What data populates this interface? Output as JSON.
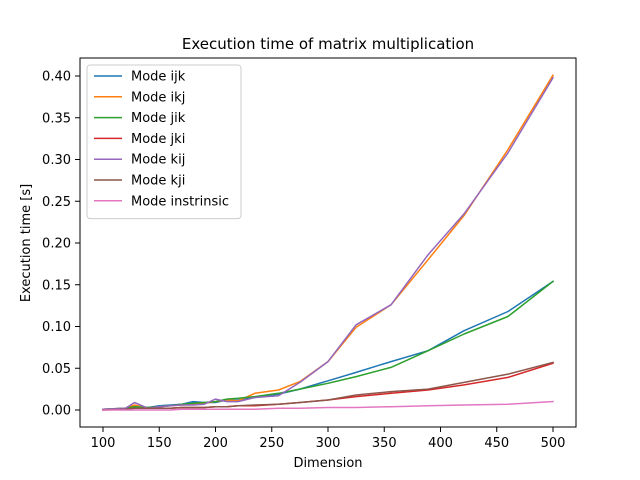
{
  "chart_data": {
    "type": "line",
    "title": "Execution time of matrix multiplication",
    "xlabel": "Dimension",
    "ylabel": "Execution time [s]",
    "xlim": [
      100,
      500
    ],
    "ylim": [
      0,
      0.4
    ],
    "x_ticks": [
      100,
      150,
      200,
      250,
      300,
      350,
      400,
      450,
      500
    ],
    "x_tick_labels": [
      "100",
      "150",
      "200",
      "250",
      "300",
      "350",
      "400",
      "450",
      "500"
    ],
    "y_ticks": [
      0.0,
      0.05,
      0.1,
      0.15,
      0.2,
      0.25,
      0.3,
      0.35,
      0.4
    ],
    "y_tick_labels": [
      "0.00",
      "0.05",
      "0.10",
      "0.15",
      "0.20",
      "0.25",
      "0.30",
      "0.35",
      "0.40"
    ],
    "legend_position": "top-left",
    "grid": false,
    "series": [
      {
        "name": "Mode ijk",
        "color": "#1f77b4",
        "x": [
          100,
          120,
          128,
          140,
          150,
          160,
          170,
          180,
          190,
          200,
          210,
          220,
          235,
          256,
          275,
          300,
          325,
          356,
          389,
          421,
          460,
          500
        ],
        "y": [
          0.001,
          0.002,
          0.004,
          0.003,
          0.005,
          0.006,
          0.007,
          0.01,
          0.009,
          0.009,
          0.012,
          0.012,
          0.015,
          0.019,
          0.025,
          0.035,
          0.045,
          0.058,
          0.071,
          0.095,
          0.118,
          0.154
        ]
      },
      {
        "name": "Mode ikj",
        "color": "#ff7f0e",
        "x": [
          100,
          120,
          128,
          140,
          150,
          160,
          170,
          180,
          190,
          200,
          210,
          220,
          235,
          256,
          275,
          300,
          325,
          356,
          389,
          421,
          460,
          500
        ],
        "y": [
          0.001,
          0.002,
          0.006,
          0.002,
          0.004,
          0.005,
          0.006,
          0.007,
          0.008,
          0.01,
          0.012,
          0.011,
          0.02,
          0.024,
          0.034,
          0.058,
          0.099,
          0.126,
          0.18,
          0.233,
          0.312,
          0.401
        ]
      },
      {
        "name": "Mode jik",
        "color": "#2ca02c",
        "x": [
          100,
          120,
          128,
          140,
          150,
          160,
          170,
          180,
          190,
          200,
          210,
          220,
          235,
          256,
          275,
          300,
          325,
          356,
          389,
          421,
          460,
          500
        ],
        "y": [
          0.001,
          0.002,
          0.004,
          0.003,
          0.004,
          0.005,
          0.007,
          0.008,
          0.009,
          0.01,
          0.013,
          0.014,
          0.016,
          0.02,
          0.025,
          0.032,
          0.04,
          0.051,
          0.071,
          0.091,
          0.112,
          0.154
        ]
      },
      {
        "name": "Mode jki",
        "color": "#d62728",
        "x": [
          100,
          120,
          128,
          140,
          150,
          160,
          170,
          180,
          190,
          200,
          210,
          220,
          235,
          256,
          275,
          300,
          325,
          356,
          389,
          421,
          460,
          500
        ],
        "y": [
          0.0,
          0.001,
          0.002,
          0.002,
          0.002,
          0.002,
          0.003,
          0.003,
          0.003,
          0.004,
          0.004,
          0.005,
          0.005,
          0.007,
          0.009,
          0.012,
          0.016,
          0.02,
          0.024,
          0.03,
          0.039,
          0.056
        ]
      },
      {
        "name": "Mode kij",
        "color": "#9467bd",
        "x": [
          100,
          120,
          128,
          140,
          150,
          160,
          170,
          180,
          190,
          200,
          210,
          220,
          235,
          256,
          275,
          300,
          325,
          356,
          389,
          421,
          460,
          500
        ],
        "y": [
          0.001,
          0.002,
          0.009,
          0.002,
          0.004,
          0.005,
          0.006,
          0.006,
          0.007,
          0.013,
          0.01,
          0.01,
          0.015,
          0.017,
          0.033,
          0.058,
          0.102,
          0.126,
          0.186,
          0.235,
          0.308,
          0.398
        ]
      },
      {
        "name": "Mode kji",
        "color": "#8c564b",
        "x": [
          100,
          120,
          128,
          140,
          150,
          160,
          170,
          180,
          190,
          200,
          210,
          220,
          235,
          256,
          275,
          300,
          325,
          356,
          389,
          421,
          460,
          500
        ],
        "y": [
          0.0,
          0.001,
          0.002,
          0.002,
          0.002,
          0.002,
          0.003,
          0.003,
          0.003,
          0.004,
          0.004,
          0.005,
          0.006,
          0.007,
          0.009,
          0.012,
          0.018,
          0.022,
          0.025,
          0.033,
          0.043,
          0.057
        ]
      },
      {
        "name": "Mode instrinsic",
        "color": "#e377c2",
        "x": [
          100,
          120,
          128,
          140,
          150,
          160,
          170,
          180,
          190,
          200,
          210,
          220,
          235,
          256,
          275,
          300,
          325,
          356,
          389,
          421,
          460,
          500
        ],
        "y": [
          0.0,
          0.0,
          0.0,
          0.0,
          0.0,
          0.0,
          0.001,
          0.001,
          0.001,
          0.001,
          0.001,
          0.001,
          0.001,
          0.002,
          0.002,
          0.003,
          0.003,
          0.004,
          0.005,
          0.006,
          0.007,
          0.01
        ]
      }
    ]
  }
}
